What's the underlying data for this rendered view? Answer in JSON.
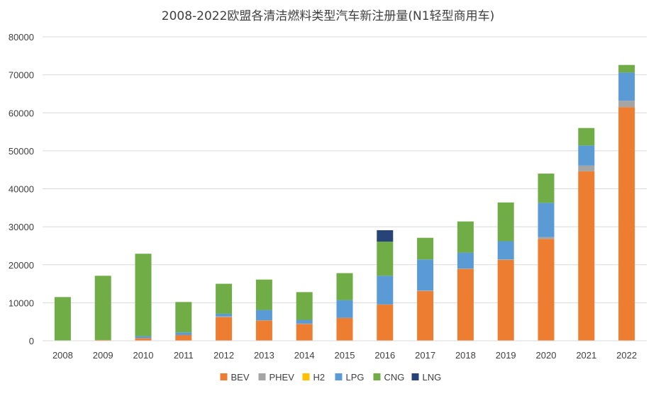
{
  "chart_data": {
    "type": "bar",
    "stacked": true,
    "title": "2008-2022欧盟各清洁燃料类型汽车新注册量(N1轻型商用车)",
    "categories": [
      "2008",
      "2009",
      "2010",
      "2011",
      "2012",
      "2013",
      "2014",
      "2015",
      "2016",
      "2017",
      "2018",
      "2019",
      "2020",
      "2021",
      "2022"
    ],
    "ylim": [
      0,
      80000
    ],
    "yticks": [
      "0",
      "10000",
      "20000",
      "30000",
      "40000",
      "50000",
      "60000",
      "70000",
      "80000"
    ],
    "ytick_values": [
      0,
      10000,
      20000,
      30000,
      40000,
      50000,
      60000,
      70000,
      80000
    ],
    "grid": true,
    "legend_position": "bottom",
    "series": [
      {
        "name": "BEV",
        "color": "#ED7D31",
        "values": [
          100,
          200,
          700,
          1500,
          6200,
          5300,
          4400,
          6000,
          9500,
          13100,
          18900,
          21300,
          26800,
          44600,
          61500
        ]
      },
      {
        "name": "PHEV",
        "color": "#A5A5A5",
        "values": [
          0,
          0,
          0,
          0,
          200,
          100,
          100,
          0,
          100,
          100,
          100,
          100,
          500,
          1500,
          1700
        ]
      },
      {
        "name": "H2",
        "color": "#FFC000",
        "values": [
          0,
          0,
          0,
          0,
          0,
          0,
          0,
          0,
          0,
          0,
          0,
          0,
          0,
          0,
          0
        ]
      },
      {
        "name": "LPG",
        "color": "#5B9BD5",
        "values": [
          0,
          0,
          500,
          700,
          700,
          2700,
          1000,
          4700,
          7500,
          8200,
          4200,
          4800,
          9000,
          5300,
          7400
        ]
      },
      {
        "name": "CNG",
        "color": "#70AD47",
        "values": [
          11400,
          16900,
          21700,
          8000,
          7900,
          8000,
          7300,
          7100,
          9000,
          5700,
          8200,
          10200,
          7700,
          4600,
          2000
        ]
      },
      {
        "name": "LNG",
        "color": "#264478",
        "values": [
          0,
          0,
          0,
          0,
          0,
          0,
          0,
          0,
          3000,
          0,
          0,
          0,
          0,
          0,
          0
        ]
      }
    ]
  }
}
